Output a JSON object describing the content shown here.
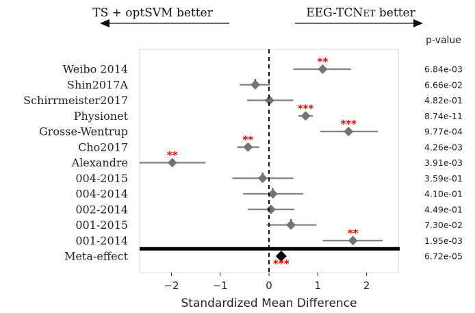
{
  "chart_data": {
    "type": "forest",
    "xlabel": "Standardized Mean Difference",
    "xlim": [
      -2.65,
      2.65
    ],
    "xticks": [
      -2,
      -1,
      0,
      1,
      2
    ],
    "xtick_labels": [
      "−2",
      "−1",
      "0",
      "1",
      "2"
    ],
    "left_arrow_label": "TS + optSVM better",
    "right_arrow_label_main": "EEG-TCN",
    "right_arrow_label_small": "ET",
    "right_arrow_label_end": " better",
    "pvalue_header": "p-value",
    "reference_line": 0,
    "colors": {
      "marker": "#737373",
      "ci": "#808080",
      "meta": "#000000",
      "significance": "#ff0000"
    },
    "studies": [
      {
        "label": "Weibo 2014",
        "estimate": 1.1,
        "ci": [
          0.5,
          1.68
        ],
        "pvalue": "6.84e-03",
        "stars": "**"
      },
      {
        "label": "Shin2017A",
        "estimate": -0.28,
        "ci": [
          -0.6,
          0.02
        ],
        "pvalue": "6.66e-02",
        "stars": "."
      },
      {
        "label": "Schirrmeister2017",
        "estimate": 0.01,
        "ci": [
          -0.45,
          0.5
        ],
        "pvalue": "4.82e-01",
        "stars": ""
      },
      {
        "label": "Physionet",
        "estimate": 0.75,
        "ci": [
          0.6,
          0.9
        ],
        "pvalue": "8.74e-11",
        "stars": "***"
      },
      {
        "label": "Grosse-Wentrup",
        "estimate": 1.63,
        "ci": [
          1.05,
          2.23
        ],
        "pvalue": "9.77e-04",
        "stars": "***"
      },
      {
        "label": "Cho2017",
        "estimate": -0.43,
        "ci": [
          -0.65,
          -0.2
        ],
        "pvalue": "4.26e-03",
        "stars": "**"
      },
      {
        "label": "Alexandre",
        "estimate": -1.98,
        "ci": [
          -2.65,
          -1.3
        ],
        "pvalue": "3.91e-03",
        "stars": "**"
      },
      {
        "label": "004-2015",
        "estimate": -0.13,
        "ci": [
          -0.75,
          0.5
        ],
        "pvalue": "3.59e-01",
        "stars": "."
      },
      {
        "label": "004-2014",
        "estimate": 0.08,
        "ci": [
          -0.53,
          0.7
        ],
        "pvalue": "4.10e-01",
        "stars": "."
      },
      {
        "label": "002-2014",
        "estimate": 0.04,
        "ci": [
          -0.43,
          0.52
        ],
        "pvalue": "4.49e-01",
        "stars": ""
      },
      {
        "label": "001-2015",
        "estimate": 0.45,
        "ci": [
          -0.05,
          0.97
        ],
        "pvalue": "7.30e-02",
        "stars": "."
      },
      {
        "label": "001-2014",
        "estimate": 1.72,
        "ci": [
          1.1,
          2.33
        ],
        "pvalue": "1.95e-03",
        "stars": "**"
      }
    ],
    "meta": {
      "label": "Meta-effect",
      "estimate": 0.25,
      "pvalue": "6.72e-05",
      "stars": "***"
    }
  }
}
